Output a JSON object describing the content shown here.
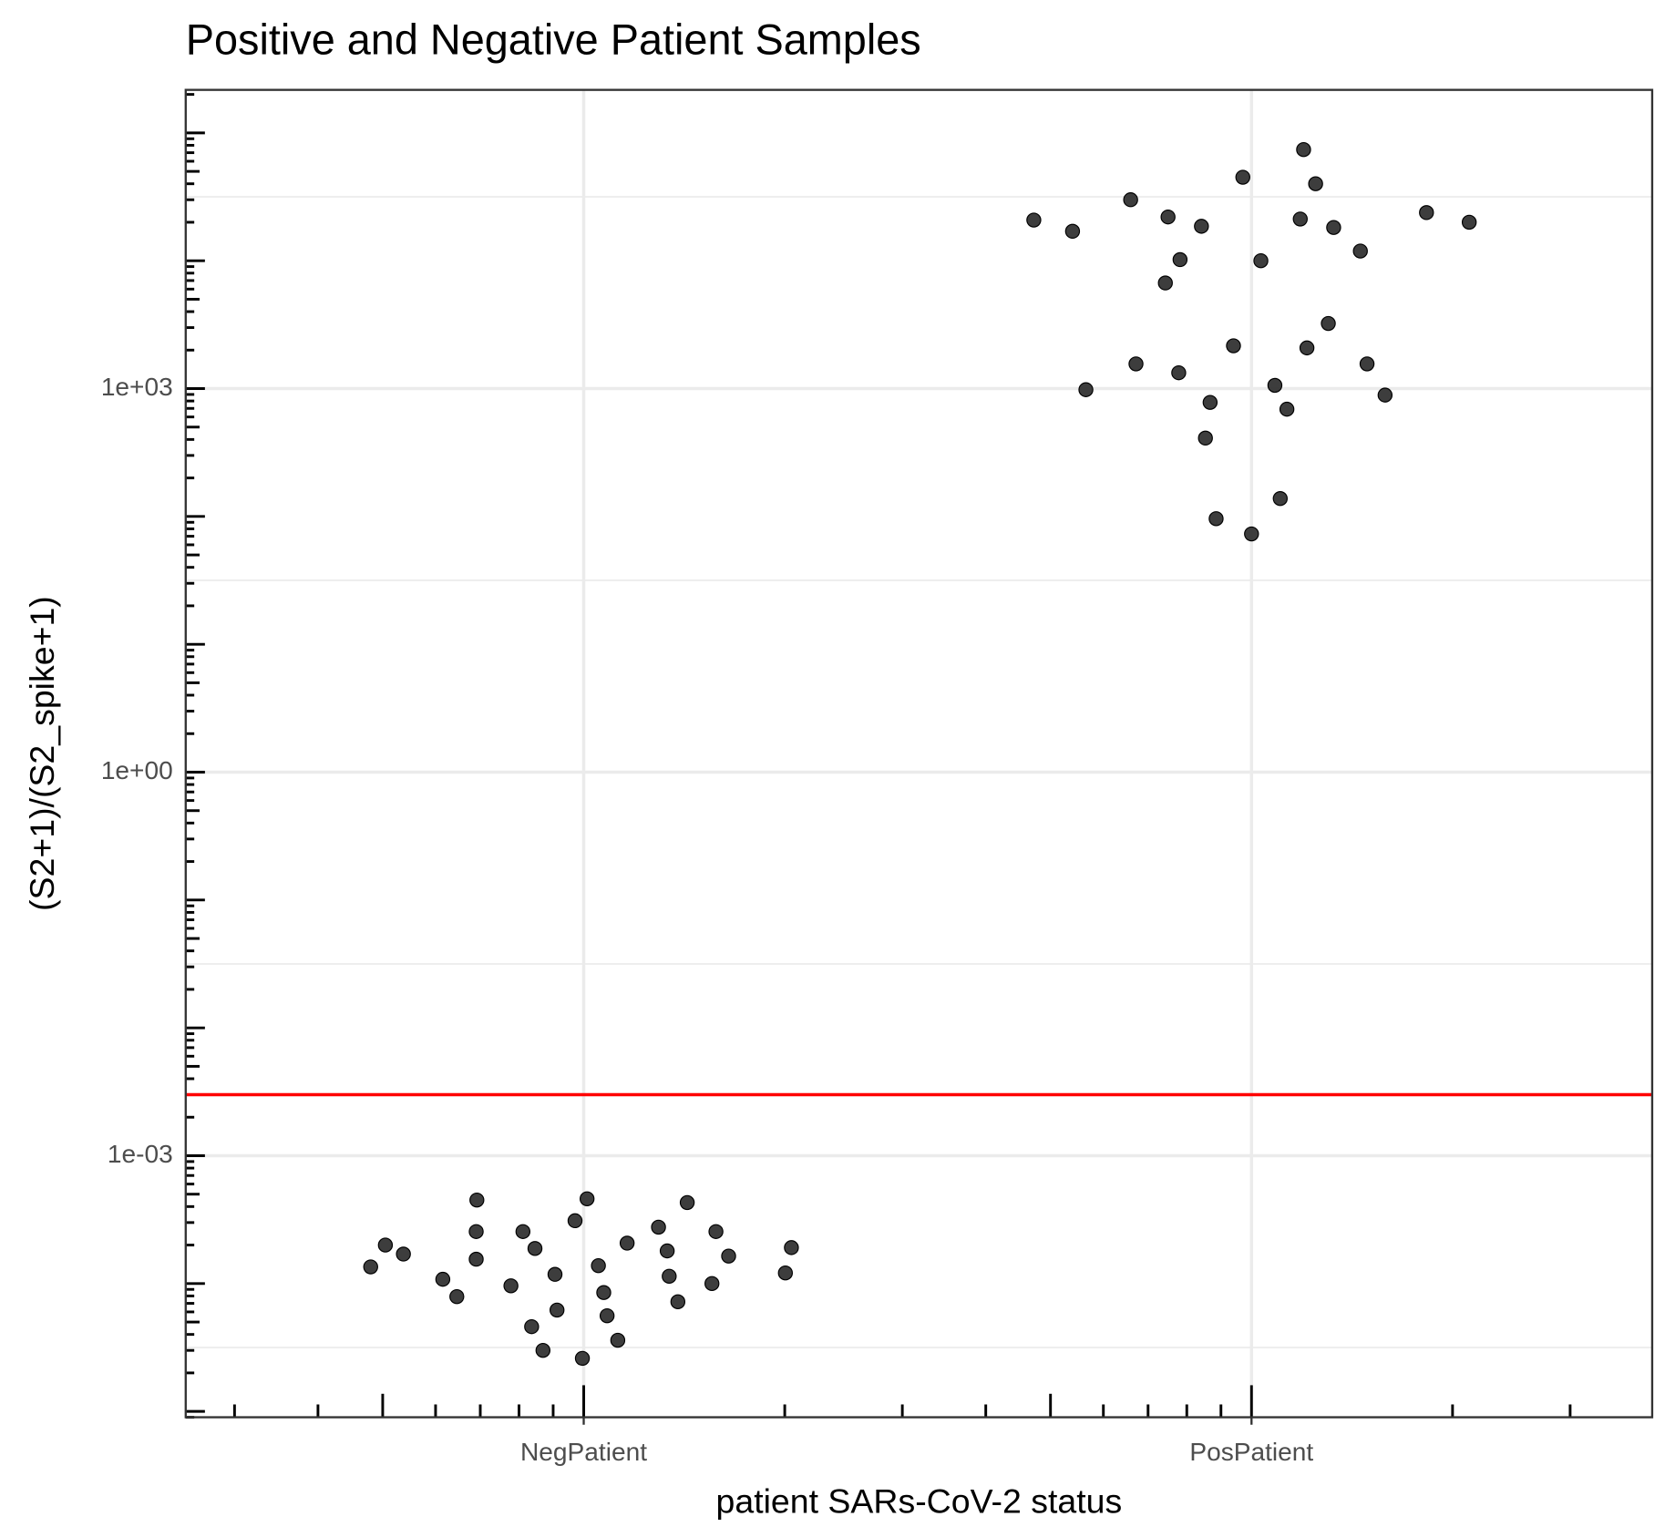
{
  "chart_data": {
    "type": "scatter",
    "title": "Positive and Negative Patient Samples",
    "xlabel": "patient SARs-CoV-2 status",
    "ylabel": "(S2+1)/(S2_spike+1)",
    "categories": [
      "NegPatient",
      "PosPatient"
    ],
    "values": [
      [
        0.00045,
        0.00046,
        0.00043,
        0.00031,
        0.000255,
        0.000255,
        0.000276,
        0.000255,
        0.0002,
        0.000207,
        0.000191,
        0.00017,
        0.000188,
        0.00018,
        0.000164,
        0.000155,
        0.000135,
        0.000138,
        0.000118,
        0.000121,
        0.000108,
        0.000114,
        9.6e-05,
        0.0001,
        8.5e-05,
        7.9e-05,
        7.2e-05,
        6.2e-05,
        5.6e-05,
        4.6e-05,
        3.6e-05,
        3e-05,
        2.6e-05
      ],
      [
        74000,
        45000,
        40000,
        30000,
        20800,
        22000,
        17000,
        18600,
        21200,
        18200,
        23800,
        20000,
        11900,
        10200,
        10000,
        6700,
        3230,
        2160,
        2080,
        1560,
        1560,
        1330,
        1060,
        980,
        890,
        780,
        690,
        410,
        138,
        96,
        73
      ]
    ],
    "color": "#333333",
    "ylim": [
      9e-06,
      217000
    ],
    "yticks": [
      {
        "value": 0.001,
        "label": "1e-03"
      },
      {
        "value": 1,
        "label": "1e+00"
      },
      {
        "value": 1000,
        "label": "1e+03"
      }
    ],
    "yminor": [
      3.162e-05,
      0.03162,
      31.62,
      31623
    ],
    "xlim": [
      0.404,
      2.6
    ],
    "log_y": true,
    "grid": true,
    "logticks": true,
    "hline": {
      "value": 0.003,
      "color": "#ff0000"
    }
  }
}
